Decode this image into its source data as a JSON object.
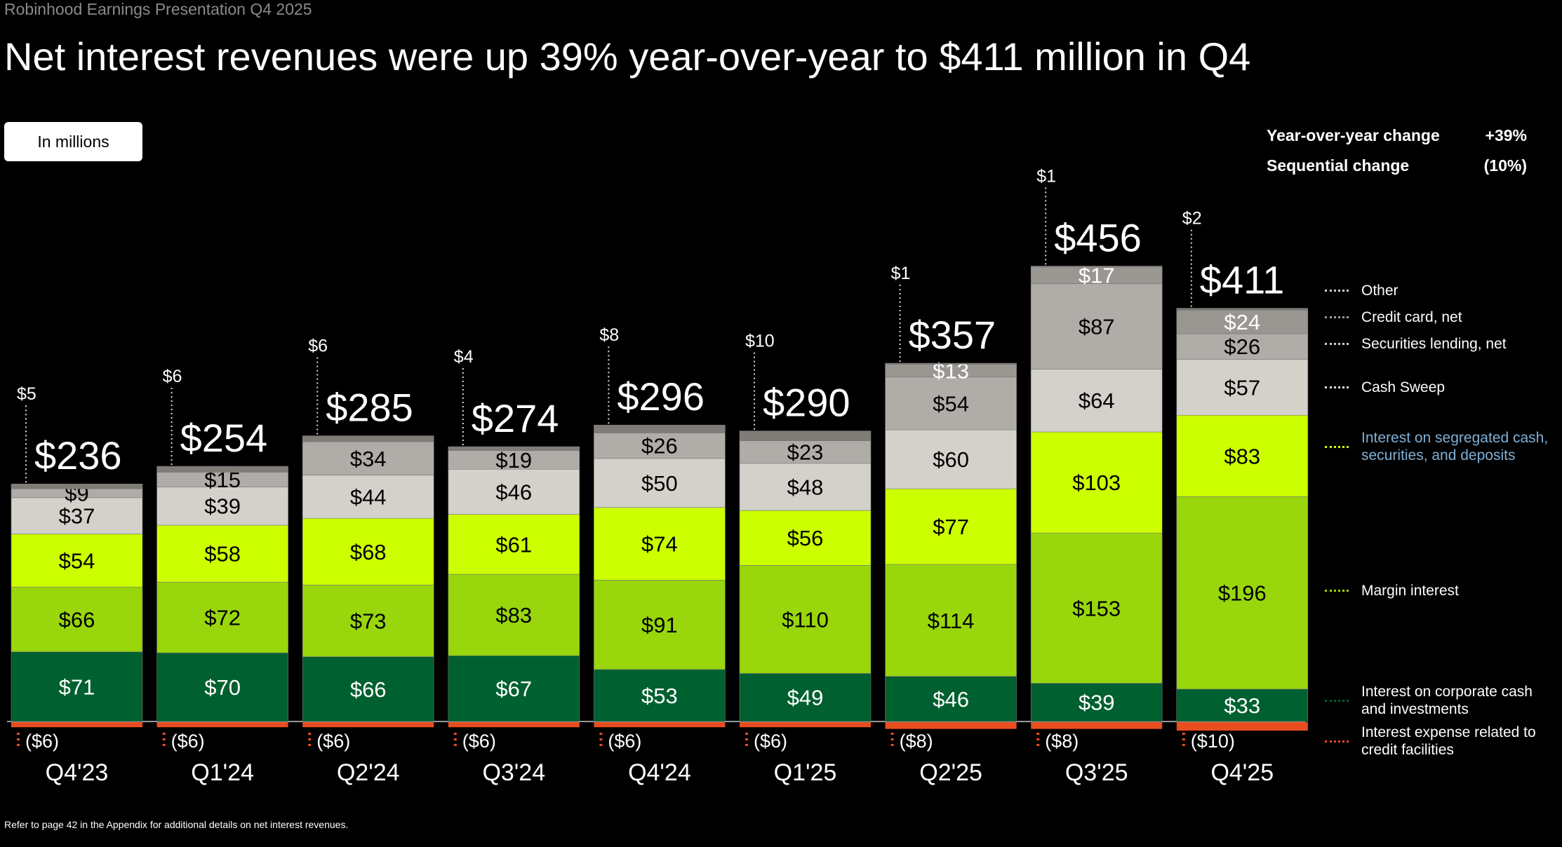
{
  "header": {
    "supertitle": "Robinhood Earnings Presentation Q4 2025",
    "title": "Net interest revenues were up 39% year-over-year to $411 million in Q4",
    "unit_button": "In millions"
  },
  "changes": [
    {
      "label": "Year-over-year change",
      "value": "+39%"
    },
    {
      "label": "Sequential change",
      "value": "(10%)"
    }
  ],
  "footnote": "Refer to page 42 in the Appendix for additional details on net interest revenues.",
  "colors": {
    "corporate": "#00602f",
    "margin": "#99d60c",
    "segregated": "#ccff00",
    "cash_sweep": "#d4d1cb",
    "sec_lending": "#b0ada8",
    "credit_card": "#9a9793",
    "other": "#807c78",
    "expense": "#e84e1f"
  },
  "chart_data": {
    "type": "bar",
    "stacked": true,
    "title": "Net interest revenues",
    "ylabel": "In millions",
    "categories": [
      "Q4'23",
      "Q1'24",
      "Q2'24",
      "Q3'24",
      "Q4'24",
      "Q1'25",
      "Q2'25",
      "Q3'25",
      "Q4'25"
    ],
    "totals": [
      "$236",
      "$254",
      "$285",
      "$274",
      "$296",
      "$290",
      "$357",
      "$456",
      "$411"
    ],
    "series": [
      {
        "key": "corporate",
        "name": "Interest on corporate cash and investments",
        "values": [
          71,
          70,
          66,
          67,
          53,
          49,
          46,
          39,
          33
        ]
      },
      {
        "key": "margin",
        "name": "Margin interest",
        "values": [
          66,
          72,
          73,
          83,
          91,
          110,
          114,
          153,
          196
        ]
      },
      {
        "key": "segregated",
        "name": "Interest on segregated cash, securities, and deposits",
        "values": [
          54,
          58,
          68,
          61,
          74,
          56,
          77,
          103,
          83
        ]
      },
      {
        "key": "cash_sweep",
        "name": "Cash Sweep",
        "values": [
          37,
          39,
          44,
          46,
          50,
          48,
          60,
          64,
          57
        ]
      },
      {
        "key": "sec_lending",
        "name": "Securities lending, net",
        "values": [
          9,
          15,
          34,
          19,
          26,
          23,
          54,
          87,
          26
        ]
      },
      {
        "key": "credit_card",
        "name": "Credit card, net",
        "values": [
          0,
          0,
          0,
          0,
          0,
          0,
          13,
          17,
          24
        ]
      },
      {
        "key": "other",
        "name": "Other",
        "values": [
          5,
          6,
          6,
          4,
          8,
          10,
          1,
          1,
          2
        ]
      },
      {
        "key": "expense",
        "name": "Interest expense related to credit facilities",
        "values": [
          -6,
          -6,
          -6,
          -6,
          -6,
          -6,
          -8,
          -8,
          -10
        ]
      }
    ],
    "legend_position": "right",
    "grid": false
  }
}
